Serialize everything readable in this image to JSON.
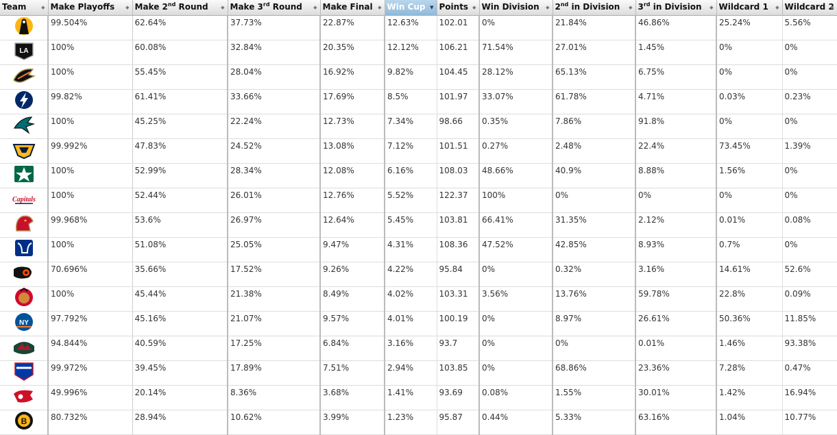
{
  "columns": [
    {
      "label": "Team",
      "sup": "",
      "rest": ""
    },
    {
      "label": "Make Playoffs",
      "sup": "",
      "rest": ""
    },
    {
      "label": "Make 2",
      "sup": "nd",
      "rest": " Round"
    },
    {
      "label": "Make 3",
      "sup": "rd",
      "rest": " Round"
    },
    {
      "label": "Make Final",
      "sup": "",
      "rest": ""
    },
    {
      "label": "Win Cup",
      "sup": "",
      "rest": ""
    },
    {
      "label": "Points",
      "sup": "",
      "rest": ""
    },
    {
      "label": "Win Division",
      "sup": "",
      "rest": ""
    },
    {
      "label": "2",
      "sup": "nd",
      "rest": " in Division"
    },
    {
      "label": "3",
      "sup": "rd",
      "rest": " in Division"
    },
    {
      "label": "Wildcard 1",
      "sup": "",
      "rest": ""
    },
    {
      "label": "Wildcard 2",
      "sup": "",
      "rest": ""
    }
  ],
  "sorted_column": 5,
  "rows": [
    {
      "icon": "penguins-logo-icon",
      "color": "#111",
      "accent": "#fcb514",
      "values": [
        "99.504%",
        "62.64%",
        "37.73%",
        "22.87%",
        "12.63%",
        "102.01",
        "0%",
        "21.84%",
        "46.86%",
        "25.24%",
        "5.56%"
      ]
    },
    {
      "icon": "kings-logo-icon",
      "color": "#111",
      "accent": "#a2aaad",
      "values": [
        "100%",
        "60.08%",
        "32.84%",
        "20.35%",
        "12.12%",
        "106.21",
        "71.54%",
        "27.01%",
        "1.45%",
        "0%",
        "0%"
      ]
    },
    {
      "icon": "ducks-logo-icon",
      "color": "#111",
      "accent": "#b5985a",
      "values": [
        "100%",
        "55.45%",
        "28.04%",
        "16.92%",
        "9.82%",
        "104.45",
        "28.12%",
        "65.13%",
        "6.75%",
        "0%",
        "0%"
      ]
    },
    {
      "icon": "lightning-logo-icon",
      "color": "#002868",
      "accent": "#ffffff",
      "values": [
        "99.82%",
        "61.41%",
        "33.66%",
        "17.69%",
        "8.5%",
        "101.97",
        "33.07%",
        "61.78%",
        "4.71%",
        "0.03%",
        "0.23%"
      ]
    },
    {
      "icon": "sharks-logo-icon",
      "color": "#006d75",
      "accent": "#111",
      "values": [
        "100%",
        "45.25%",
        "22.24%",
        "12.73%",
        "7.34%",
        "98.66",
        "0.35%",
        "7.86%",
        "91.8%",
        "0%",
        "0%"
      ]
    },
    {
      "icon": "predators-logo-icon",
      "color": "#041e42",
      "accent": "#ffb81c",
      "values": [
        "99.992%",
        "47.83%",
        "24.52%",
        "13.08%",
        "7.12%",
        "101.51",
        "0.27%",
        "2.48%",
        "22.4%",
        "73.45%",
        "1.39%"
      ]
    },
    {
      "icon": "stars-logo-icon",
      "color": "#006847",
      "accent": "#8f8f8c",
      "values": [
        "100%",
        "52.99%",
        "28.34%",
        "12.08%",
        "6.16%",
        "108.03",
        "48.66%",
        "40.9%",
        "8.88%",
        "1.56%",
        "0%"
      ]
    },
    {
      "icon": "capitals-logo-icon",
      "color": "#041e42",
      "accent": "#c8102e",
      "values": [
        "100%",
        "52.44%",
        "26.01%",
        "12.76%",
        "5.52%",
        "122.37",
        "100%",
        "0%",
        "0%",
        "0%",
        "0%"
      ]
    },
    {
      "icon": "panthers-logo-icon",
      "color": "#c8102e",
      "accent": "#b9975b",
      "values": [
        "99.968%",
        "53.6%",
        "26.97%",
        "12.64%",
        "5.45%",
        "103.81",
        "66.41%",
        "31.35%",
        "2.12%",
        "0.01%",
        "0.08%"
      ]
    },
    {
      "icon": "blues-logo-icon",
      "color": "#002f87",
      "accent": "#fcb514",
      "values": [
        "100%",
        "51.08%",
        "25.05%",
        "9.47%",
        "4.31%",
        "108.36",
        "47.52%",
        "42.85%",
        "8.93%",
        "0.7%",
        "0%"
      ]
    },
    {
      "icon": "flyers-logo-icon",
      "color": "#111",
      "accent": "#f74902",
      "values": [
        "70.696%",
        "35.66%",
        "17.52%",
        "9.26%",
        "4.22%",
        "95.84",
        "0%",
        "0.32%",
        "3.16%",
        "14.61%",
        "52.6%"
      ]
    },
    {
      "icon": "blackhawks-logo-icon",
      "color": "#cf0a2c",
      "accent": "#111",
      "values": [
        "100%",
        "45.44%",
        "21.38%",
        "8.49%",
        "4.02%",
        "103.31",
        "3.56%",
        "13.76%",
        "59.78%",
        "22.8%",
        "0.09%"
      ]
    },
    {
      "icon": "islanders-logo-icon",
      "color": "#00539b",
      "accent": "#f47d30",
      "values": [
        "97.792%",
        "45.16%",
        "21.07%",
        "9.57%",
        "4.01%",
        "100.19",
        "0%",
        "8.97%",
        "26.61%",
        "50.36%",
        "11.85%"
      ]
    },
    {
      "icon": "wild-logo-icon",
      "color": "#154734",
      "accent": "#a6192e",
      "values": [
        "94.844%",
        "40.59%",
        "17.25%",
        "6.84%",
        "3.16%",
        "93.7",
        "0%",
        "0%",
        "0.01%",
        "1.46%",
        "93.38%"
      ]
    },
    {
      "icon": "rangers-logo-icon",
      "color": "#0038a8",
      "accent": "#ce1126",
      "values": [
        "99.972%",
        "39.45%",
        "17.89%",
        "7.51%",
        "2.94%",
        "103.85",
        "0%",
        "68.86%",
        "23.36%",
        "7.28%",
        "0.47%"
      ]
    },
    {
      "icon": "red-wings-logo-icon",
      "color": "#ce1126",
      "accent": "#ffffff",
      "values": [
        "49.996%",
        "20.14%",
        "8.36%",
        "3.68%",
        "1.41%",
        "93.69",
        "0.08%",
        "1.55%",
        "30.01%",
        "1.42%",
        "16.94%"
      ]
    },
    {
      "icon": "bruins-logo-icon",
      "color": "#111",
      "accent": "#fcb514",
      "values": [
        "80.732%",
        "28.94%",
        "10.62%",
        "3.99%",
        "1.23%",
        "95.87",
        "0.44%",
        "5.33%",
        "63.16%",
        "1.04%",
        "10.77%"
      ]
    }
  ]
}
